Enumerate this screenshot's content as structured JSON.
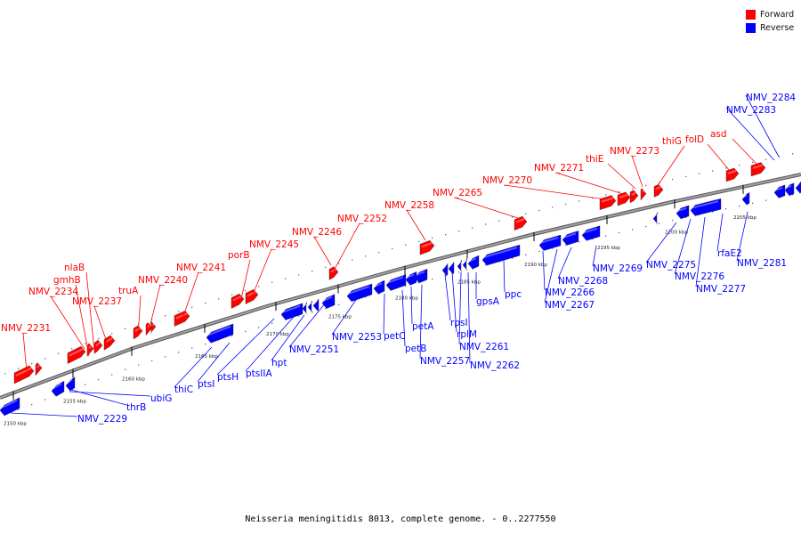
{
  "colors": {
    "forward": "#ff0000",
    "reverse": "#0000ff",
    "axis": "#888888",
    "dots": "#666666"
  },
  "legend": [
    {
      "label": "Forward",
      "color": "#ff0000"
    },
    {
      "label": "Reverse",
      "color": "#0000ff"
    }
  ],
  "caption": "Neisseria meningitidis 8013, complete genome. - 0..2277550",
  "ticks": [
    "2150 kbp",
    "2155 kbp",
    "2160 kbp",
    "2165 kbp",
    "2170 kbp",
    "2175 kbp",
    "2180 kbp",
    "2185 kbp",
    "2190 kbp",
    "2195 kbp",
    "2200 kbp",
    "2205 kbp"
  ],
  "forward_labels": [
    "NMV_2231",
    "NMV_2234",
    "gmhB",
    "nlaB",
    "NMV_2237",
    "truA",
    "NMV_2240",
    "NMV_2241",
    "porB",
    "NMV_2245",
    "NMV_2246",
    "NMV_2252",
    "NMV_2258",
    "NMV_2265",
    "NMV_2270",
    "NMV_2271",
    "thiE",
    "NMV_2273",
    "thiG",
    "folD",
    "asd"
  ],
  "reverse_labels": [
    "NMV_2229",
    "thrB",
    "ubiG",
    "thiC",
    "ptsI",
    "ptsH",
    "ptsIIA",
    "hpt",
    "NMV_2251",
    "NMV_2253",
    "petC",
    "petB",
    "petA",
    "NMV_2257",
    "rpsI",
    "rplM",
    "NMV_2261",
    "NMV_2262",
    "gpsA",
    "ppc",
    "NMV_2266",
    "NMV_2267",
    "NMV_2268",
    "NMV_2269",
    "NMV_2275",
    "NMV_2276",
    "NMV_2277",
    "rfaE2",
    "NMV_2281",
    "NMV_2283",
    "NMV_2284"
  ]
}
